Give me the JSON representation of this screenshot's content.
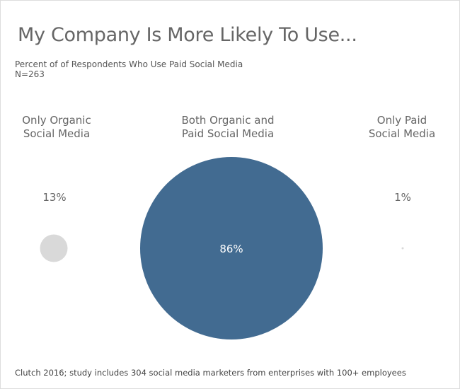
{
  "chart_data": {
    "type": "bubble",
    "title": "My Company Is More Likely To Use...",
    "subtitle": "Percent of of Respondents Who Use Paid Social Media",
    "n_label": "N=263",
    "categories": [
      "Only Organic Social Media",
      "Both Organic and Paid Social Media",
      "Only Paid Social Media"
    ],
    "category_lines": [
      [
        "Only Organic",
        "Social Media"
      ],
      [
        "Both Organic and",
        "Paid Social Media"
      ],
      [
        "Only Paid",
        "Social Media"
      ]
    ],
    "values": [
      13,
      86,
      1
    ],
    "labels": [
      "13%",
      "86%",
      "1%"
    ],
    "colors": [
      "#d9d9d9",
      "#426b91",
      "#d9d9d9"
    ],
    "inner_label_color": "#ffffff",
    "footer": "Clutch 2016; study includes 304 social media marketers from enterprises with 100+ employees"
  }
}
